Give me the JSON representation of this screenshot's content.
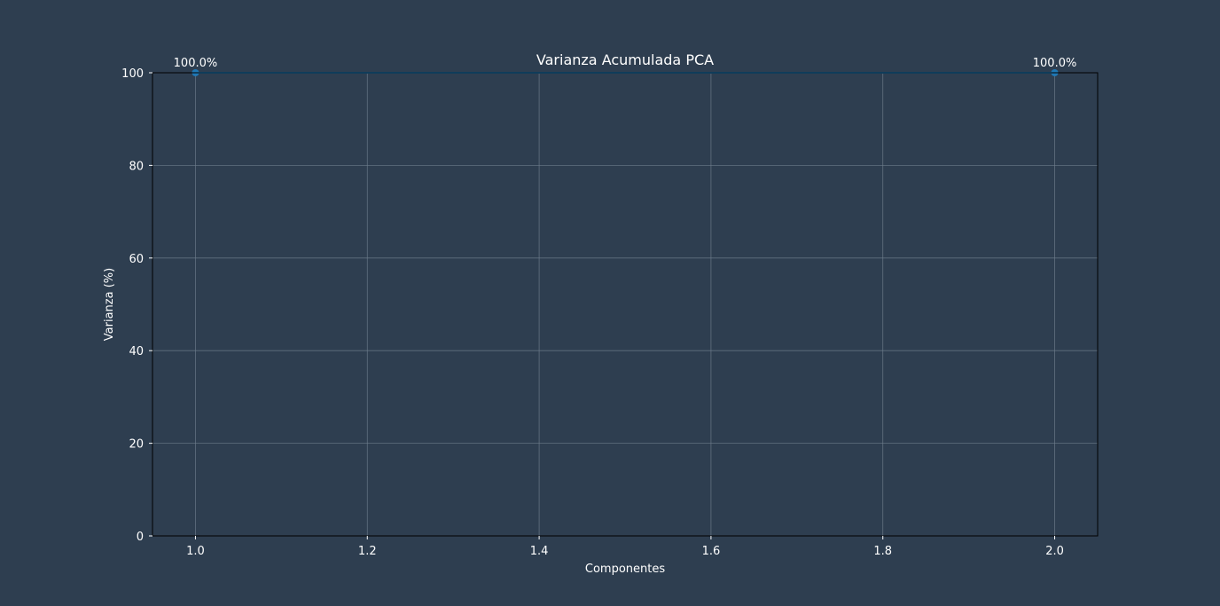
{
  "chart_data": {
    "type": "line",
    "title": "Varianza Acumulada PCA",
    "xlabel": "Componentes",
    "ylabel": "Varianza (%)",
    "xlim": [
      0.95,
      2.05
    ],
    "ylim": [
      0,
      100
    ],
    "x_ticks": [
      1.0,
      1.2,
      1.4,
      1.6,
      1.8,
      2.0
    ],
    "x_tick_labels": [
      "1.0",
      "1.2",
      "1.4",
      "1.6",
      "1.8",
      "2.0"
    ],
    "y_ticks": [
      0,
      20,
      40,
      60,
      80,
      100
    ],
    "y_tick_labels": [
      "0",
      "20",
      "40",
      "60",
      "80",
      "100"
    ],
    "grid": true,
    "series": [
      {
        "x": [
          1,
          2
        ],
        "y": [
          100,
          100
        ],
        "marker": "circle",
        "color": "#1f77b4"
      }
    ],
    "data_labels": [
      "100.0%",
      "100.0%"
    ]
  },
  "colors": {
    "background": "#2e3e50",
    "axes_frame": "#000000",
    "grid": "#6f7e8d",
    "text": "#ffffff",
    "series": "#1f77b4"
  }
}
